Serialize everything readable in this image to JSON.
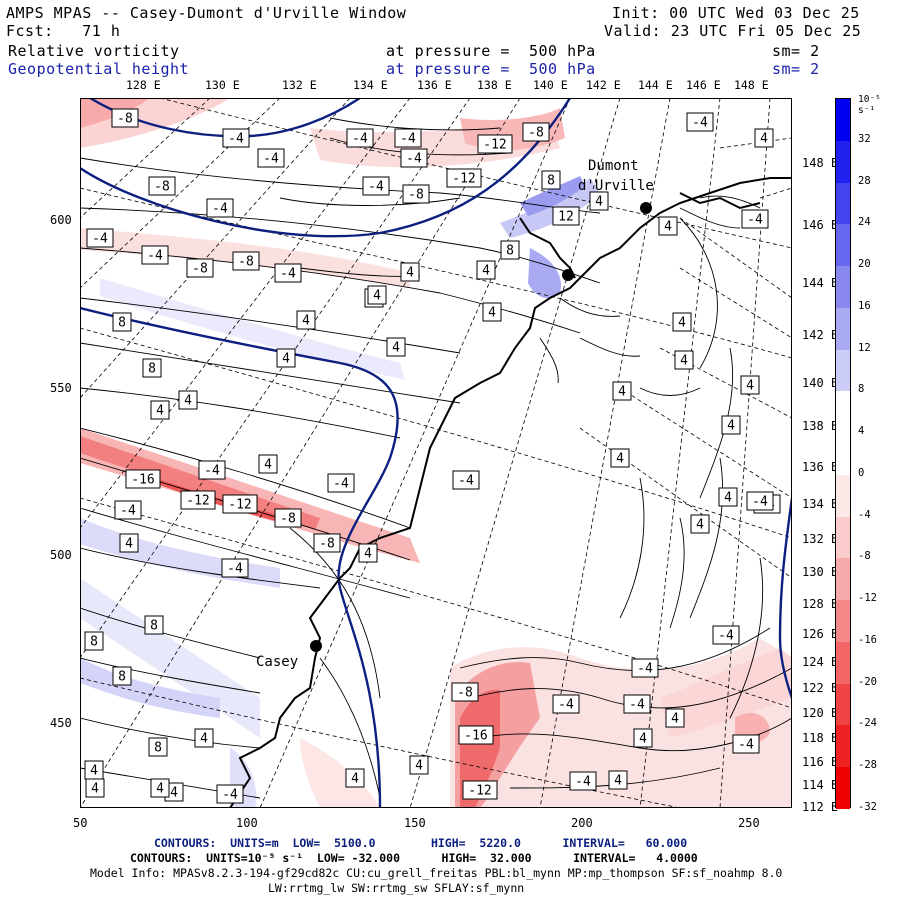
{
  "header": {
    "title": "AMPS MPAS -- Casey-Dumont d'Urville Window",
    "forecast": "Fcst:   71 h",
    "init": "Init: 00 UTC Wed 03 Dec 25",
    "valid": "Valid: 23 UTC Fri 05 Dec 25",
    "field1": "Relative vorticity",
    "field2": "Geopotential height",
    "level1": "at pressure =  500 hPa",
    "level2": "at pressure =  500 hPa",
    "sm1": "sm= 2",
    "sm2": "sm= 2"
  },
  "top_longitudes": [
    "128 E",
    "130 E",
    "132 E",
    "134 E",
    "136 E",
    "138 E",
    "140 E",
    "142 E",
    "144 E",
    "146 E",
    "148 E"
  ],
  "right_longitudes": [
    "148 E",
    "146 E",
    "144 E",
    "142 E",
    "140 E",
    "138 E",
    "136 E",
    "134 E",
    "132 E",
    "130 E",
    "128 E",
    "126 E",
    "124 E",
    "122 E",
    "120 E",
    "118 E",
    "116 E",
    "114 E",
    "112 E"
  ],
  "y_ticks": [
    "600",
    "550",
    "500",
    "450"
  ],
  "x_ticks": [
    "50",
    "100",
    "150",
    "200",
    "250"
  ],
  "colorbar": {
    "unit": "10⁻⁵ s⁻¹",
    "labels": [
      "32",
      "28",
      "24",
      "20",
      "16",
      "12",
      "8",
      "4",
      "0",
      "-4",
      "-8",
      "-12",
      "-16",
      "-20",
      "-24",
      "-28",
      "-32"
    ],
    "colors": [
      "#0000f0",
      "#2222f0",
      "#4444ee",
      "#6666ee",
      "#8888ee",
      "#aaaaf2",
      "#ccccf8",
      "#ffffff",
      "#ffffff",
      "#fde8e8",
      "#fbcccc",
      "#f8aaaa",
      "#f58888",
      "#f26666",
      "#f04444",
      "#ee2222",
      "#ee0000"
    ]
  },
  "stations": {
    "casey": "Casey",
    "dumont1": "Dumont",
    "dumont2": "d'Urville"
  },
  "footer": {
    "line1": "CONTOURS:  UNITS=m  LOW=  5100.0        HIGH=  5220.0      INTERVAL=   60.000",
    "line2": "CONTOURS:  UNITS=10⁻⁵ s⁻¹  LOW= -32.000      HIGH=  32.000      INTERVAL=   4.0000",
    "line3": "Model Info: MPASv8.2.3-194-gf29cd82c CU:cu_grell_freitas PBL:bl_mynn MP:mp_thompson SF:sf_noahmp 8.0",
    "line4": "LW:rrtmg_lw SW:rrtmg_sw SFLAY:sf_mynn"
  },
  "contour_labels": {
    "l01": "-8",
    "l02": "-4",
    "l03": "-4",
    "l04": "-4",
    "l05": "-4",
    "l06": "-4",
    "l07": "-12",
    "l08": "-8",
    "l09": "-4",
    "l10": "-8",
    "l11": "-4",
    "l12": "-4",
    "l13": "-8",
    "l14": "-12",
    "l15": "-4",
    "l16": "-4",
    "l17": "-8",
    "l18": "-8",
    "l19": "-4",
    "l20": "4",
    "l21": "4",
    "l22": "8",
    "l23": "12",
    "l24": "4",
    "l25": "4",
    "l26": "4",
    "l27": "-4",
    "l28": "8",
    "l29": "4",
    "l30": "4",
    "l31": "4",
    "l32": "4",
    "l33": "8",
    "l34": "4",
    "l35": "4",
    "l36": "4",
    "l37": "8",
    "l38": "4",
    "l39": "4",
    "l40": "4",
    "l41": "4",
    "l42": "-4",
    "l43": "4",
    "l44": "-16",
    "l45": "-12",
    "l46": "-12",
    "l47": "-4",
    "l48": "-4",
    "l49": "4",
    "l50": "4",
    "l51": "-8",
    "l52": "4",
    "l53": "-8",
    "l54": "-4",
    "l55": "4",
    "l56": "-4",
    "l57": "4",
    "l58": "-4",
    "l59": "4",
    "l60": "4",
    "l61": "-4",
    "l62": "8",
    "l63": "8",
    "l64": "4",
    "l65": "-4",
    "l66": "-4",
    "l67": "8",
    "l68": "8",
    "l69": "-8",
    "l70": "-4",
    "l71": "-4",
    "l72": "4",
    "l73": "-16",
    "l74": "4",
    "l75": "4",
    "l76": "4",
    "l77": "4",
    "l78": "4",
    "l79": "-12",
    "l80": "-4",
    "l81": "4",
    "l82": "4",
    "l83": "4",
    "l84": "-4",
    "l85": "-4"
  }
}
